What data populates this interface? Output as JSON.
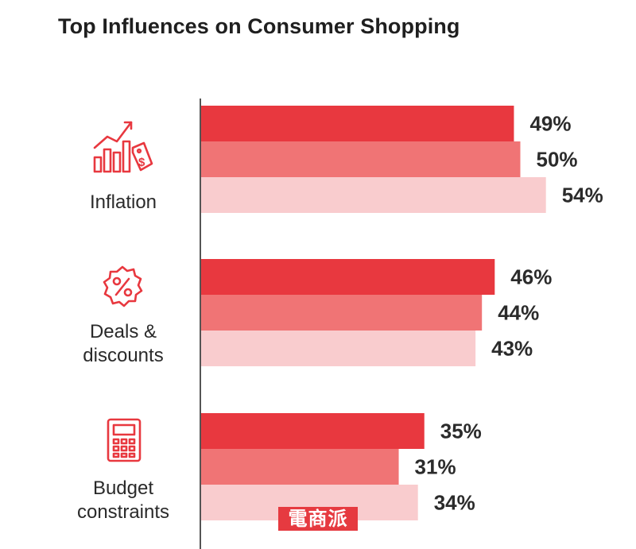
{
  "chart_data": {
    "type": "bar",
    "orientation": "horizontal",
    "title": "Top Influences on Consumer Shopping",
    "categories": [
      "Inflation",
      "Deals & discounts",
      "Budget constraints"
    ],
    "category_lines": [
      [
        "Inflation"
      ],
      [
        "Deals &",
        "discounts"
      ],
      [
        "Budget",
        "constraints"
      ]
    ],
    "category_icons": [
      "inflation-chart-tag-icon",
      "percent-badge-icon",
      "calculator-icon"
    ],
    "series": [
      {
        "values": [
          49,
          46,
          35
        ],
        "color": "#e8383f"
      },
      {
        "values": [
          50,
          44,
          31
        ],
        "color": "#f07475"
      },
      {
        "values": [
          54,
          43,
          34
        ],
        "color": "#f9ccce"
      }
    ],
    "value_suffix": "%",
    "grid": false
  },
  "watermark": "電商派"
}
